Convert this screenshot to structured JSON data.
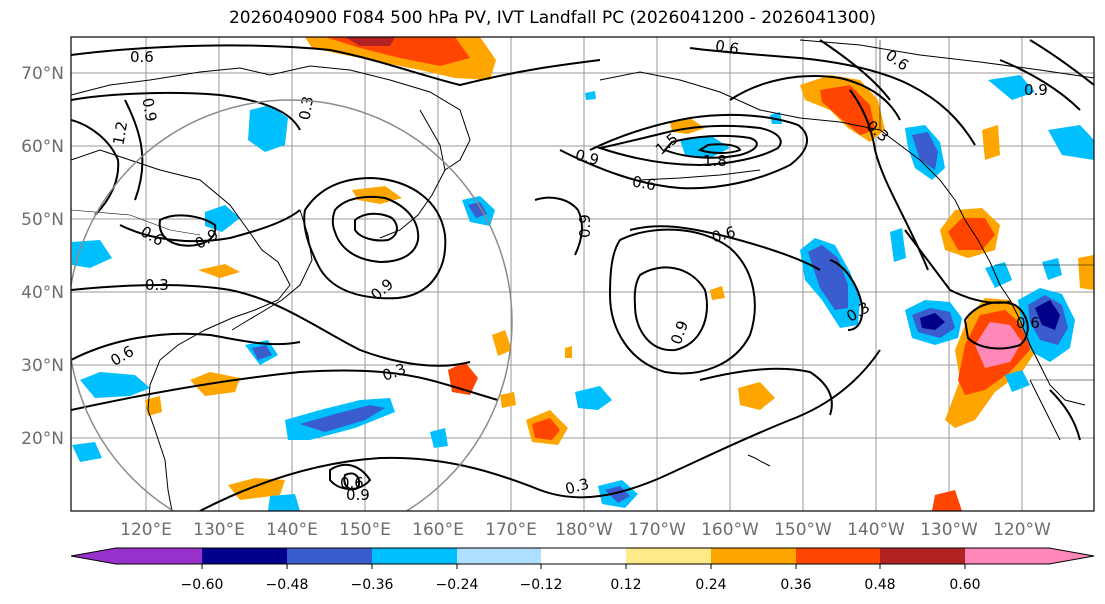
{
  "title": "2026040900 F084 500 hPa PV, IVT Landfall PC (2026041200 - 2026041300)",
  "map": {
    "lat_labels": [
      "70°N",
      "60°N",
      "50°N",
      "40°N",
      "30°N",
      "20°N"
    ],
    "lon_labels": [
      "120°E",
      "130°E",
      "140°E",
      "150°E",
      "160°E",
      "170°E",
      "180°W",
      "170°W",
      "160°W",
      "150°W",
      "140°W",
      "130°W",
      "120°W"
    ],
    "contour_labels": [
      "0.3",
      "0.6",
      "0.9",
      "1.2",
      "1.5",
      "1.8"
    ]
  },
  "colorbar": {
    "colors": [
      "#9932cc",
      "#00008b",
      "#3a5ccc",
      "#00bfff",
      "#b0e0ff",
      "#ffffff",
      "#ffea8a",
      "#ffa500",
      "#ff4500",
      "#b22222",
      "#ff88b8"
    ],
    "tick_labels": [
      "−0.60",
      "−0.48",
      "−0.36",
      "−0.24",
      "−0.12",
      "0.12",
      "0.24",
      "0.36",
      "0.48",
      "0.60"
    ]
  }
}
